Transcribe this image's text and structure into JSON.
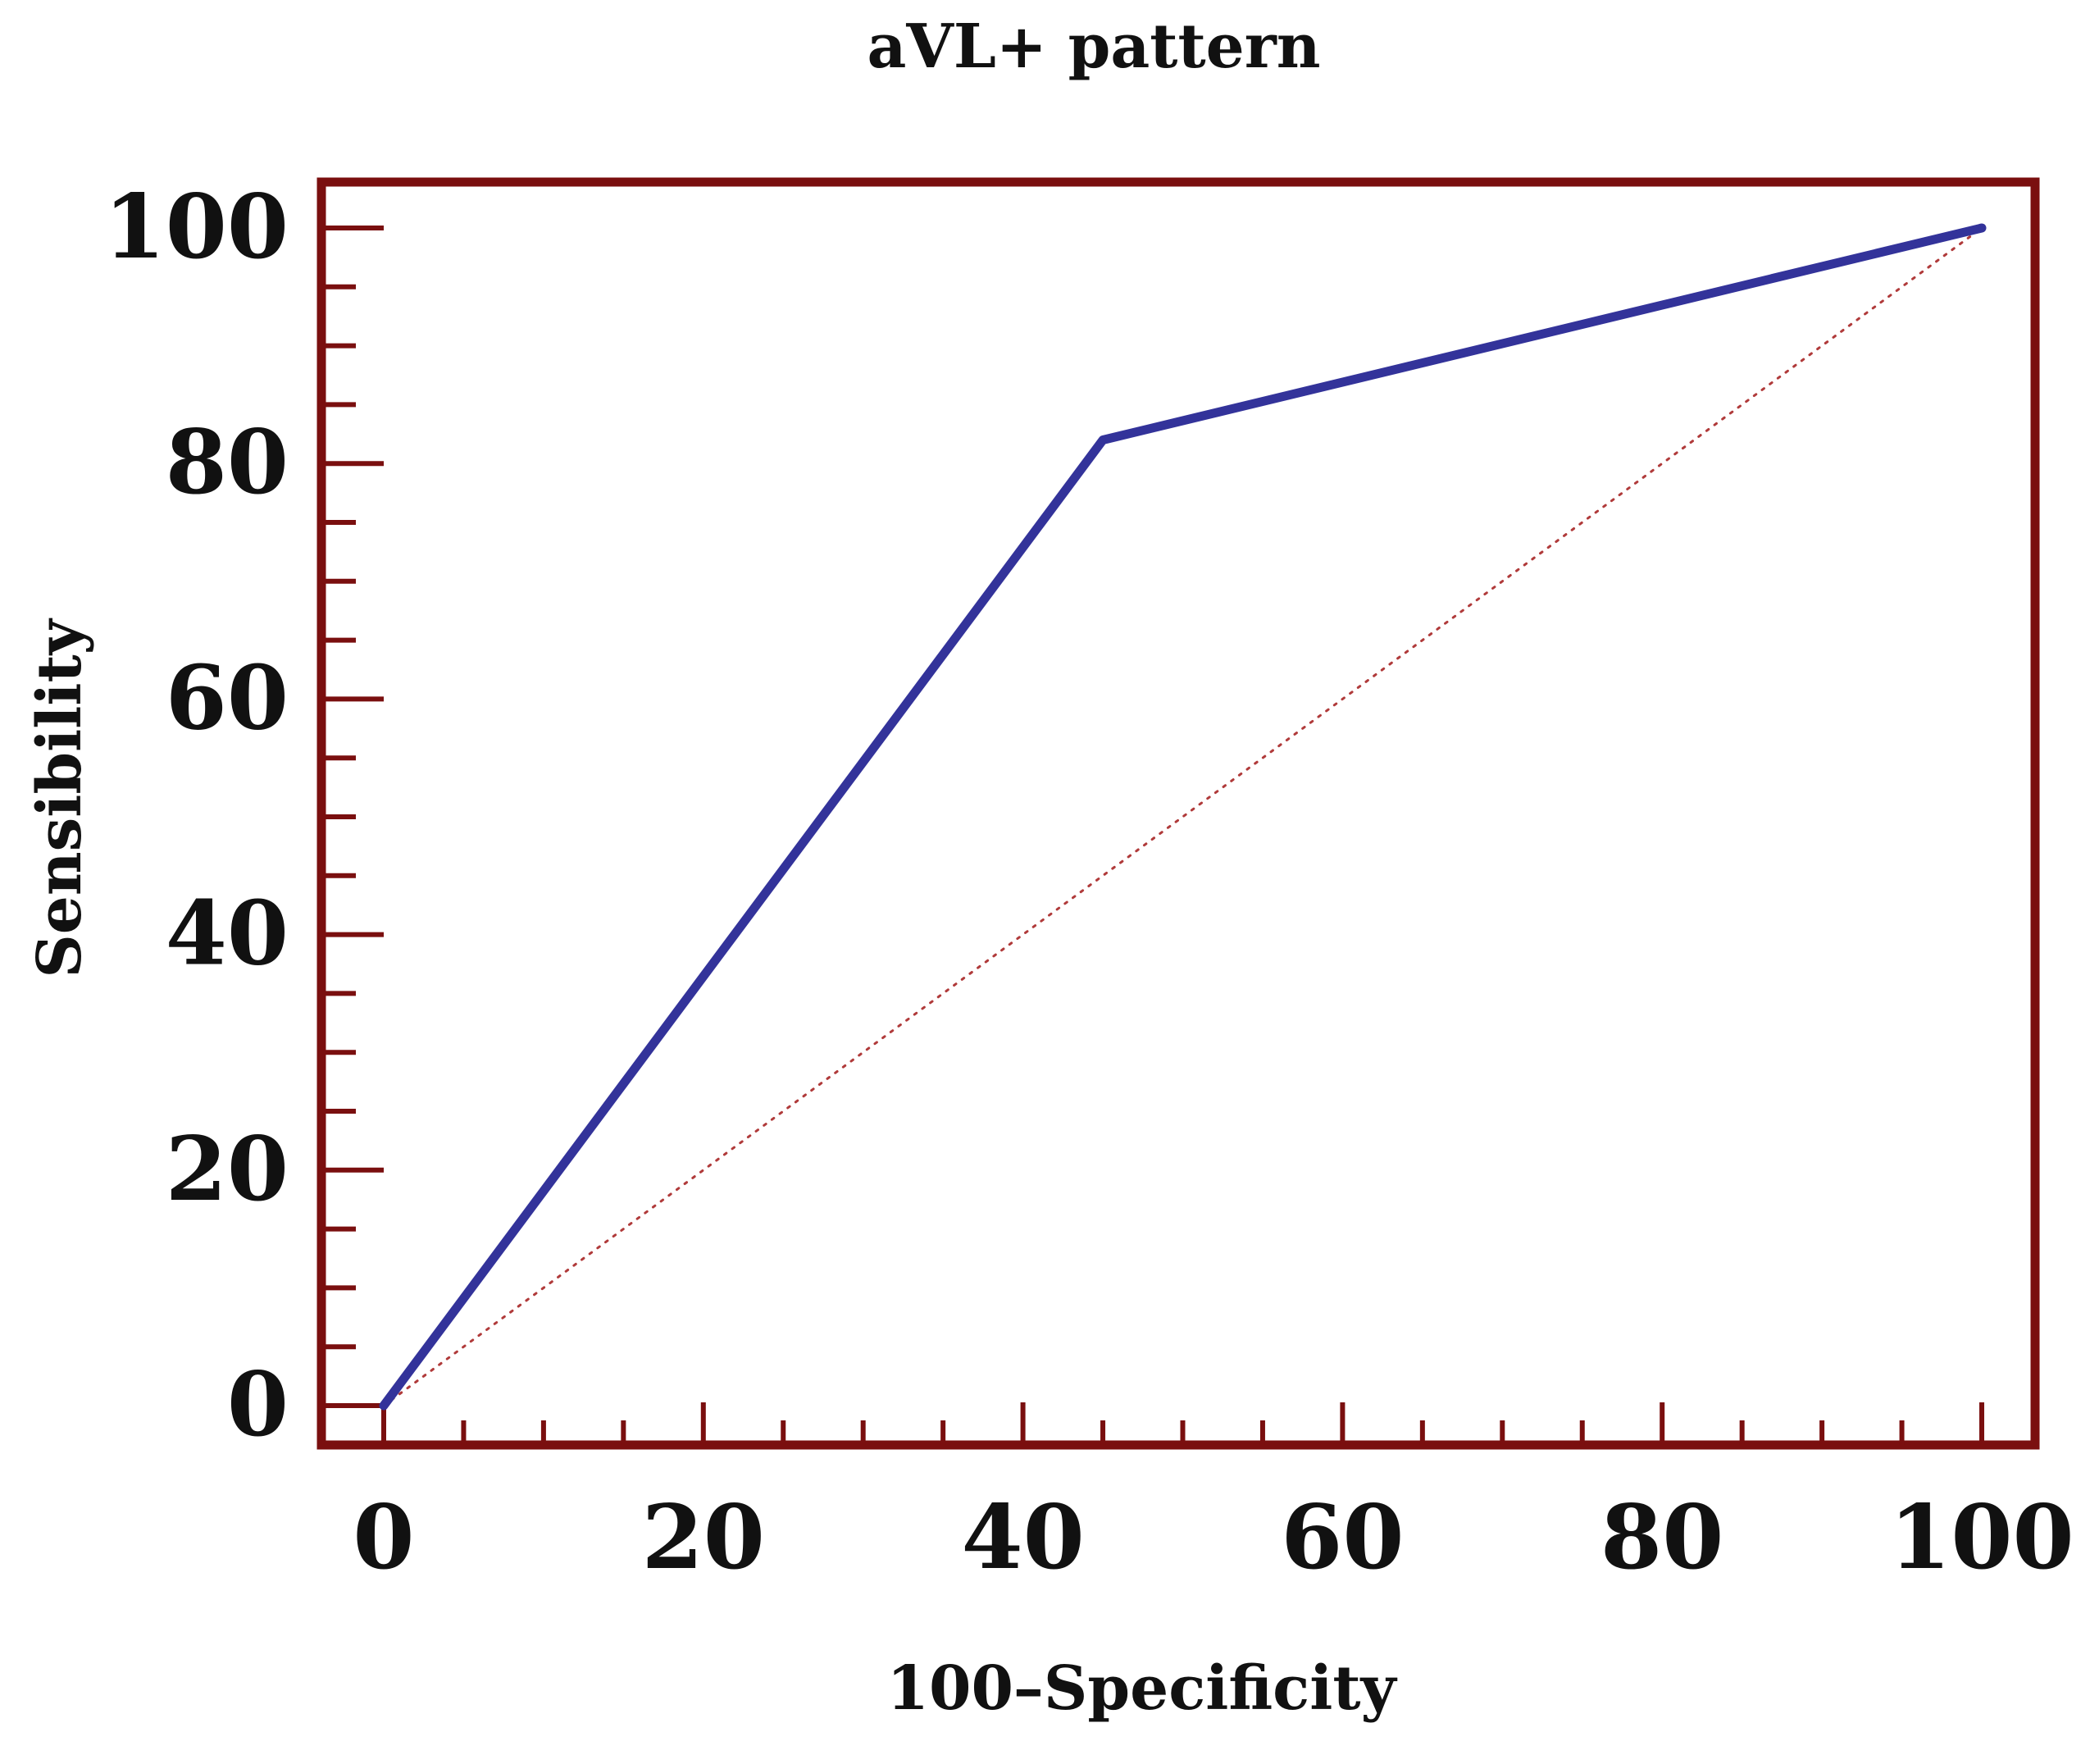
{
  "chart_data": {
    "type": "line",
    "title": "aVL+ pattern",
    "xlabel": "100–Specificity",
    "ylabel": "Sensibility",
    "xlim": [
      0,
      100
    ],
    "ylim": [
      0,
      100
    ],
    "x_ticks": [
      0,
      20,
      40,
      60,
      80,
      100
    ],
    "y_ticks": [
      0,
      20,
      40,
      60,
      80,
      100
    ],
    "x_minor_step": 5,
    "y_minor_step": 5,
    "grid": false,
    "legend": "none",
    "series": [
      {
        "name": "ROC curve",
        "style": "solid",
        "color": "#33339a",
        "points": [
          [
            0,
            0
          ],
          [
            45,
            82
          ],
          [
            100,
            100
          ]
        ]
      },
      {
        "name": "Reference line",
        "style": "dotted",
        "color": "#b03a3a",
        "points": [
          [
            0,
            0
          ],
          [
            100,
            100
          ]
        ]
      }
    ]
  },
  "colors": {
    "frame": "#7a0f0f",
    "roc": "#33339a",
    "reference": "#b03a3a",
    "text": "#111111"
  }
}
